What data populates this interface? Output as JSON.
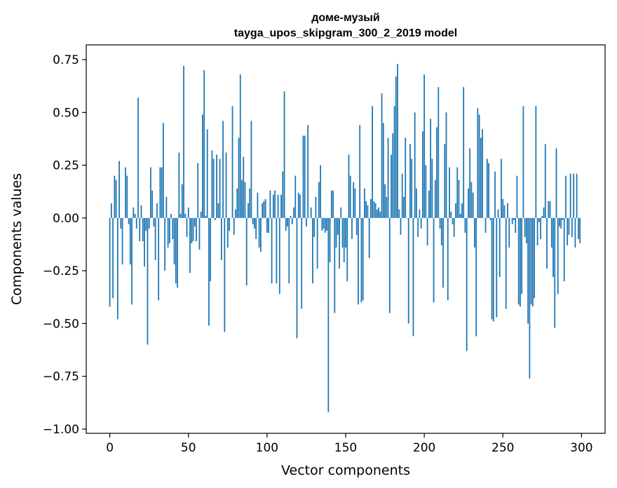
{
  "chart_data": {
    "type": "bar",
    "title": "доме-музый",
    "subtitle": "tayga_upos_skipgram_300_2_2019 model",
    "xlabel": "Vector components",
    "ylabel": "Components values",
    "xlim": [
      -15,
      315
    ],
    "ylim": [
      -1.02,
      0.82
    ],
    "xticks": [
      0,
      50,
      100,
      150,
      200,
      250,
      300
    ],
    "xtick_labels": [
      "0",
      "50",
      "100",
      "150",
      "200",
      "250",
      "300"
    ],
    "yticks": [
      -1.0,
      -0.75,
      -0.5,
      -0.25,
      0.0,
      0.25,
      0.5,
      0.75
    ],
    "ytick_labels": [
      "−1.00",
      "−0.75",
      "−0.50",
      "−0.25",
      "0.00",
      "0.25",
      "0.50",
      "0.75"
    ],
    "grid": false,
    "bar_color": "#1f77b4",
    "values": [
      -0.42,
      0.07,
      -0.38,
      0.2,
      0.18,
      -0.48,
      0.27,
      -0.05,
      -0.22,
      0.0,
      0.24,
      0.2,
      -0.03,
      -0.22,
      -0.41,
      0.05,
      0.02,
      -0.05,
      0.57,
      -0.11,
      0.06,
      -0.11,
      -0.23,
      -0.06,
      -0.6,
      -0.05,
      0.24,
      0.13,
      -0.04,
      -0.2,
      0.07,
      -0.39,
      0.24,
      0.24,
      0.45,
      -0.25,
      0.1,
      -0.14,
      -0.12,
      0.02,
      -0.1,
      -0.22,
      -0.31,
      -0.33,
      0.31,
      0.02,
      0.16,
      0.72,
      0.02,
      -0.09,
      0.05,
      -0.26,
      -0.12,
      -0.11,
      -0.04,
      -0.11,
      0.26,
      -0.15,
      0.03,
      0.49,
      0.7,
      0.01,
      0.42,
      -0.51,
      -0.3,
      0.32,
      0.28,
      -0.01,
      0.3,
      0.07,
      0.28,
      -0.2,
      0.46,
      -0.54,
      0.31,
      -0.14,
      -0.06,
      0.0,
      0.53,
      -0.08,
      0.04,
      0.14,
      0.38,
      0.68,
      0.18,
      0.29,
      0.17,
      -0.32,
      0.07,
      0.14,
      0.46,
      -0.03,
      -0.05,
      -0.1,
      0.12,
      -0.14,
      -0.16,
      0.07,
      0.08,
      0.09,
      -0.07,
      -0.07,
      0.13,
      -0.31,
      0.11,
      0.13,
      -0.31,
      0.11,
      -0.36,
      0.11,
      0.22,
      0.6,
      -0.06,
      -0.04,
      -0.31,
      0.01,
      -0.03,
      0.05,
      0.2,
      -0.57,
      0.12,
      0.11,
      -0.43,
      0.39,
      0.39,
      -0.04,
      0.44,
      0.0,
      0.05,
      -0.31,
      -0.09,
      0.1,
      -0.24,
      0.17,
      0.25,
      -0.06,
      -0.05,
      -0.07,
      -0.06,
      -0.92,
      -0.21,
      0.13,
      0.13,
      -0.45,
      -0.14,
      -0.08,
      -0.24,
      0.05,
      -0.14,
      -0.21,
      -0.14,
      -0.3,
      0.3,
      0.2,
      -0.1,
      0.17,
      0.14,
      -0.08,
      -0.41,
      0.44,
      -0.4,
      -0.39,
      0.14,
      0.08,
      0.06,
      -0.19,
      0.09,
      0.53,
      0.08,
      0.07,
      0.04,
      0.05,
      0.03,
      0.59,
      0.45,
      0.16,
      0.1,
      0.38,
      -0.45,
      0.3,
      0.4,
      0.53,
      0.67,
      0.73,
      0.04,
      -0.08,
      0.21,
      0.1,
      0.38,
      0.0,
      -0.5,
      0.35,
      0.28,
      -0.56,
      0.5,
      0.14,
      -0.09,
      0.04,
      -0.05,
      0.41,
      0.68,
      0.25,
      -0.13,
      0.13,
      0.47,
      0.28,
      -0.4,
      0.18,
      0.43,
      0.62,
      -0.05,
      -0.13,
      -0.33,
      0.35,
      0.5,
      -0.39,
      0.24,
      0.03,
      -0.03,
      -0.09,
      0.07,
      0.24,
      0.18,
      0.02,
      0.07,
      0.62,
      -0.07,
      -0.63,
      0.14,
      0.33,
      0.17,
      0.12,
      -0.14,
      -0.56,
      0.52,
      0.49,
      0.38,
      0.42,
      0.0,
      -0.07,
      0.28,
      0.26,
      -0.01,
      -0.48,
      -0.49,
      0.22,
      -0.47,
      0.04,
      -0.28,
      0.28,
      0.09,
      0.06,
      -0.43,
      0.07,
      -0.14,
      0.0,
      -0.03,
      -0.01,
      -0.07,
      0.2,
      -0.41,
      -0.42,
      -0.36,
      0.53,
      -0.09,
      -0.12,
      -0.5,
      -0.76,
      -0.41,
      -0.42,
      -0.38,
      0.53,
      -0.13,
      -0.02,
      -0.1,
      0.01,
      0.05,
      0.35,
      -0.24,
      0.08,
      0.08,
      -0.14,
      -0.28,
      -0.52,
      0.33,
      -0.36,
      -0.04,
      -0.05,
      -0.01,
      -0.3,
      0.2,
      -0.13,
      -0.08,
      0.21,
      -0.09,
      0.21,
      -0.14,
      0.21,
      -0.1,
      -0.12
    ]
  }
}
